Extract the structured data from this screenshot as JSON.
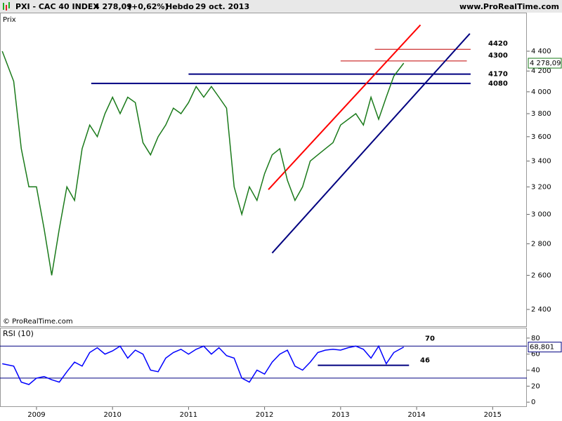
{
  "header": {
    "symbol": "PXI - CAC 40 INDEX",
    "change": "(+0,62%)",
    "period": "Hebdo",
    "date": "29 oct. 2013",
    "site": "www.ProRealTime.com"
  },
  "chart_data": [
    {
      "type": "line",
      "title": "Prix",
      "credit": "© ProRealTime.com",
      "color": "#1a7a1a",
      "log_scale": true,
      "x": [
        2008.55,
        2008.7,
        2008.8,
        2008.9,
        2009.0,
        2009.1,
        2009.2,
        2009.3,
        2009.4,
        2009.5,
        2009.6,
        2009.7,
        2009.8,
        2009.9,
        2010.0,
        2010.1,
        2010.2,
        2010.3,
        2010.4,
        2010.5,
        2010.6,
        2010.7,
        2010.8,
        2010.9,
        2011.0,
        2011.1,
        2011.2,
        2011.3,
        2011.4,
        2011.5,
        2011.6,
        2011.7,
        2011.8,
        2011.9,
        2012.0,
        2012.1,
        2012.2,
        2012.3,
        2012.4,
        2012.5,
        2012.6,
        2012.7,
        2012.8,
        2012.9,
        2013.0,
        2013.1,
        2013.2,
        2013.3,
        2013.4,
        2013.5,
        2013.6,
        2013.7,
        2013.83
      ],
      "values": [
        4400,
        4100,
        3500,
        3200,
        3200,
        2900,
        2600,
        2900,
        3200,
        3100,
        3500,
        3700,
        3600,
        3800,
        3950,
        3800,
        3950,
        3900,
        3550,
        3450,
        3600,
        3700,
        3850,
        3800,
        3900,
        4050,
        3950,
        4050,
        3950,
        3850,
        3200,
        3000,
        3200,
        3100,
        3300,
        3450,
        3500,
        3250,
        3100,
        3200,
        3400,
        3450,
        3500,
        3550,
        3700,
        3750,
        3800,
        3700,
        3950,
        3750,
        3950,
        4150,
        4278.09
      ],
      "last_value": 4278.09,
      "last_label": "4 278,09",
      "xlim": [
        2008.52,
        2015.45
      ],
      "ylim": [
        2307,
        4817
      ],
      "yticks": [
        {
          "value": 2400,
          "label": "2 400"
        },
        {
          "value": 2600,
          "label": "2 600"
        },
        {
          "value": 2800,
          "label": "2 800"
        },
        {
          "value": 3000,
          "label": "3 000"
        },
        {
          "value": 3200,
          "label": "3 200"
        },
        {
          "value": 3400,
          "label": "3 400"
        },
        {
          "value": 3600,
          "label": "3 600"
        },
        {
          "value": 3800,
          "label": "3 800"
        },
        {
          "value": 4000,
          "label": "4 000"
        },
        {
          "value": 4200,
          "label": "4 200"
        },
        {
          "value": 4400,
          "label": "4 400"
        }
      ],
      "levels": [
        {
          "value": 4420,
          "color": "#c00000",
          "from": 2013.45,
          "to": 2014.71
        },
        {
          "value": 4300,
          "color": "#c00000",
          "from": 2013.0,
          "to": 2014.66
        },
        {
          "value": 4170,
          "color": "#000080",
          "from": 2011.0,
          "to": 2014.71
        },
        {
          "value": 4080,
          "color": "#000080",
          "from": 2009.72,
          "to": 2014.71
        }
      ],
      "trendlines": [
        {
          "x": [
            2012.05,
            2014.05
          ],
          "y": [
            3180,
            4680
          ],
          "color": "#ff0000"
        },
        {
          "x": [
            2012.1,
            2014.7
          ],
          "y": [
            2740,
            4585
          ],
          "color": "#000080"
        }
      ]
    },
    {
      "type": "line",
      "title": "RSI (10)",
      "color": "#0000ff",
      "values": [
        48,
        45,
        25,
        22,
        30,
        32,
        28,
        25,
        38,
        50,
        45,
        62,
        68,
        60,
        64,
        70,
        55,
        65,
        60,
        40,
        38,
        55,
        62,
        66,
        60,
        66,
        70,
        60,
        68,
        58,
        55,
        30,
        25,
        40,
        35,
        50,
        60,
        65,
        45,
        40,
        50,
        62,
        65,
        66,
        65,
        68,
        70,
        66,
        55,
        70,
        48,
        62,
        68.801
      ],
      "last_value": 68.801,
      "last_label": "68,801",
      "overbought": 70,
      "oversold": 30,
      "support": {
        "value": 46,
        "from": 2012.7,
        "to": 2013.9
      },
      "ylim": [
        -6,
        93
      ],
      "yticks": [
        0,
        20,
        40,
        60,
        80
      ],
      "xticks": [
        2009,
        2010,
        2011,
        2012,
        2013,
        2014,
        2015
      ]
    }
  ]
}
